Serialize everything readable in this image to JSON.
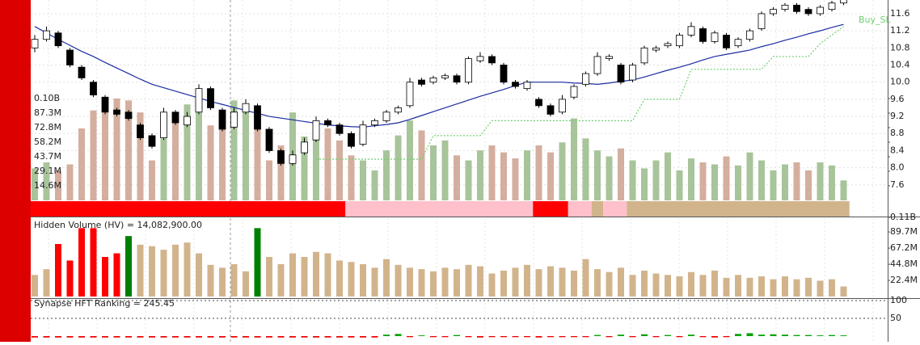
{
  "chart_data": [
    {
      "type": "candlestick",
      "open": [
        10.8,
        11.0,
        11.15,
        10.75,
        10.35,
        10.0,
        9.65,
        9.35,
        9.3,
        9.0,
        8.75,
        8.7,
        9.3,
        9.0,
        9.3,
        9.85,
        9.35,
        8.95,
        9.3,
        9.45,
        8.9,
        8.4,
        8.1,
        8.35,
        8.65,
        9.1,
        9.0,
        8.8,
        8.55,
        9.0,
        9.1,
        9.3,
        9.45,
        10.05,
        10.0,
        10.1,
        10.15,
        10.0,
        10.5,
        10.6,
        10.4,
        10.0,
        9.85,
        9.6,
        9.45,
        9.3,
        9.65,
        9.95,
        10.2,
        10.55,
        10.4,
        10.05,
        10.45,
        10.75,
        10.85,
        10.85,
        11.1,
        11.25,
        10.95,
        11.1,
        10.85,
        11.0,
        11.25,
        11.6,
        11.7,
        11.8,
        11.7,
        11.6,
        11.7,
        11.85
      ],
      "high": [
        11.1,
        11.3,
        11.2,
        10.8,
        10.4,
        10.05,
        9.7,
        9.4,
        9.35,
        9.05,
        8.8,
        9.4,
        9.35,
        9.3,
        9.95,
        9.9,
        9.4,
        9.4,
        9.6,
        9.5,
        8.95,
        8.45,
        8.4,
        8.7,
        9.2,
        9.15,
        9.05,
        8.85,
        9.1,
        9.15,
        9.35,
        9.45,
        10.1,
        10.1,
        10.15,
        10.2,
        10.2,
        10.6,
        10.7,
        10.65,
        10.45,
        10.05,
        10.05,
        9.65,
        9.5,
        9.7,
        9.95,
        10.25,
        10.7,
        10.65,
        10.45,
        10.45,
        10.85,
        10.85,
        10.95,
        11.15,
        11.4,
        11.3,
        11.2,
        11.15,
        11.05,
        11.25,
        11.65,
        11.75,
        11.85,
        11.85,
        11.75,
        11.8,
        11.9,
        12.0
      ],
      "low": [
        10.7,
        10.95,
        10.8,
        10.35,
        10.05,
        9.65,
        9.25,
        9.2,
        9.1,
        8.65,
        8.45,
        8.65,
        9.0,
        8.95,
        9.25,
        9.35,
        8.85,
        8.9,
        9.25,
        8.85,
        8.35,
        8.05,
        8.05,
        8.3,
        8.6,
        8.95,
        8.75,
        8.45,
        8.5,
        8.95,
        9.05,
        9.25,
        9.4,
        9.9,
        9.95,
        10.05,
        9.95,
        9.95,
        10.45,
        10.4,
        9.95,
        9.85,
        9.8,
        9.4,
        9.2,
        9.25,
        9.6,
        9.9,
        10.15,
        10.5,
        9.95,
        10.0,
        10.4,
        10.7,
        10.8,
        10.8,
        11.05,
        10.9,
        10.9,
        10.75,
        10.8,
        10.95,
        11.2,
        11.55,
        11.65,
        11.6,
        11.55,
        11.55,
        11.65,
        11.8
      ],
      "close": [
        11.0,
        11.2,
        10.85,
        10.4,
        10.1,
        9.7,
        9.3,
        9.25,
        9.15,
        8.7,
        8.5,
        9.3,
        9.05,
        9.2,
        9.85,
        9.4,
        8.9,
        9.3,
        9.5,
        8.9,
        8.4,
        8.1,
        8.3,
        8.6,
        9.1,
        9.0,
        8.8,
        8.5,
        9.0,
        9.1,
        9.3,
        9.4,
        10.0,
        9.95,
        10.1,
        10.15,
        10.0,
        10.55,
        10.6,
        10.45,
        10.0,
        9.9,
        10.0,
        9.45,
        9.25,
        9.6,
        9.9,
        10.2,
        10.6,
        10.6,
        10.0,
        10.4,
        10.8,
        10.8,
        10.9,
        11.1,
        11.3,
        10.95,
        11.15,
        10.8,
        11.0,
        11.2,
        11.6,
        11.7,
        11.8,
        11.65,
        11.6,
        11.75,
        11.85,
        11.95
      ],
      "up_color": "#ffffff",
      "down_color": "#000000",
      "series": [
        {
          "color": "#1a2ca0",
          "values": [
            11.3,
            11.15,
            11.0,
            10.86,
            10.72,
            10.6,
            10.46,
            10.33,
            10.2,
            10.07,
            9.95,
            9.87,
            9.79,
            9.71,
            9.63,
            9.55,
            9.48,
            9.41,
            9.34,
            9.27,
            9.2,
            9.16,
            9.12,
            9.08,
            9.04,
            9.0,
            8.98,
            8.96,
            8.95,
            8.98,
            9.01,
            9.05,
            9.13,
            9.22,
            9.31,
            9.4,
            9.49,
            9.58,
            9.67,
            9.75,
            9.83,
            9.92,
            10.0,
            10.0,
            10.0,
            10.0,
            9.98,
            9.97,
            9.95,
            9.98,
            10.02,
            10.05,
            10.12,
            10.2,
            10.28,
            10.35,
            10.43,
            10.52,
            10.6,
            10.65,
            10.7,
            10.75,
            10.83,
            10.9,
            10.98,
            11.05,
            11.13,
            11.2,
            11.28,
            11.35
          ]
        },
        {
          "name": "Buy_SL",
          "color": "#6fcf6f",
          "dash": true,
          "values": [
            null,
            null,
            null,
            null,
            null,
            null,
            null,
            null,
            null,
            null,
            null,
            null,
            null,
            null,
            null,
            null,
            null,
            null,
            null,
            null,
            null,
            null,
            null,
            null,
            8.2,
            8.2,
            8.2,
            8.2,
            8.2,
            8.2,
            8.2,
            8.2,
            8.2,
            8.2,
            8.75,
            8.75,
            8.75,
            8.75,
            8.75,
            9.1,
            9.1,
            9.1,
            9.1,
            9.1,
            9.1,
            9.1,
            9.1,
            9.1,
            9.1,
            9.1,
            9.1,
            9.1,
            9.6,
            9.6,
            9.6,
            9.6,
            10.3,
            10.3,
            10.3,
            10.3,
            10.3,
            10.3,
            10.3,
            10.6,
            10.6,
            10.6,
            10.6,
            10.9,
            11.1,
            11.3
          ]
        }
      ],
      "regime_runs": [
        {
          "count": 27,
          "color": "#ff0000"
        },
        {
          "count": 16,
          "color": "#ffc0cb"
        },
        {
          "count": 3,
          "color": "#ff0000"
        },
        {
          "count": 2,
          "color": "#ffc0cb"
        },
        {
          "count": 1,
          "color": "#d2b48c"
        },
        {
          "count": 2,
          "color": "#ffc0cb"
        },
        {
          "count": 19,
          "color": "#d2b48c"
        }
      ],
      "ylim": [
        6.86,
        11.92
      ],
      "yticks": [
        7.6,
        {
          "value": 8,
          "label": "8.0"
        },
        8.4,
        8.8,
        9.2,
        9.6,
        {
          "value": 10,
          "label": "10.0"
        },
        10.4,
        10.8,
        11.2,
        11.6
      ],
      "grid": true
    },
    {
      "type": "bar",
      "values": [
        32,
        38,
        30,
        36,
        72,
        90,
        95,
        102,
        100,
        88,
        40,
        62,
        78,
        96,
        88,
        75,
        80,
        100,
        90,
        72,
        40,
        55,
        88,
        64,
        72,
        72,
        60,
        45,
        40,
        30,
        50,
        65,
        80,
        70,
        55,
        60,
        45,
        40,
        50,
        55,
        48,
        42,
        50,
        55,
        48,
        58,
        82,
        62,
        50,
        44,
        52,
        40,
        32,
        40,
        48,
        30,
        42,
        38,
        36,
        44,
        35,
        48,
        40,
        30,
        36,
        38,
        30,
        38,
        35,
        20
      ],
      "up_color": "#a8c49a",
      "down_color": "#d4ae9e",
      "ylim": [
        0,
        200.5
      ],
      "yticks": [
        {
          "value": 14.6,
          "label": "14.6M"
        },
        {
          "value": 29.1,
          "label": "29.1M"
        },
        {
          "value": 43.7,
          "label": "43.7M"
        },
        {
          "value": 58.2,
          "label": "58.2M"
        },
        {
          "value": 72.8,
          "label": "72.8M"
        },
        {
          "value": 87.3,
          "label": "87.3M"
        },
        {
          "value": 101.9,
          "label": "0.10B"
        }
      ]
    },
    {
      "type": "bar",
      "title": "Hidden Volume (HV) = 14,082,900.00",
      "values": [
        30,
        38,
        73,
        50,
        95,
        95,
        55,
        60,
        84,
        72,
        70,
        65,
        72,
        75,
        60,
        44,
        40,
        45,
        35,
        95,
        55,
        45,
        60,
        55,
        62,
        60,
        50,
        48,
        45,
        40,
        52,
        44,
        40,
        38,
        35,
        40,
        38,
        44,
        42,
        32,
        36,
        40,
        44,
        38,
        42,
        40,
        36,
        52,
        38,
        34,
        40,
        30,
        36,
        32,
        30,
        28,
        34,
        30,
        36,
        26,
        30,
        26,
        28,
        24,
        28,
        24,
        26,
        22,
        24,
        14
      ],
      "colors": [
        "#d2b48c",
        "#d2b48c",
        "#ff0000",
        "#ff0000",
        "#ff0000",
        "#ff0000",
        "#ff0000",
        "#ff0000",
        "#008000",
        "#d2b48c",
        "#d2b48c",
        "#d2b48c",
        "#d2b48c",
        "#d2b48c",
        "#d2b48c",
        "#d2b48c",
        "#d2b48c",
        "#d2b48c",
        "#d2b48c",
        "#008000",
        "#d2b48c",
        "#d2b48c",
        "#d2b48c",
        "#d2b48c",
        "#d2b48c",
        "#d2b48c",
        "#d2b48c",
        "#d2b48c",
        "#d2b48c",
        "#d2b48c",
        "#d2b48c",
        "#d2b48c",
        "#d2b48c",
        "#d2b48c",
        "#d2b48c",
        "#d2b48c",
        "#d2b48c",
        "#d2b48c",
        "#d2b48c",
        "#d2b48c",
        "#d2b48c",
        "#d2b48c",
        "#d2b48c",
        "#d2b48c",
        "#d2b48c",
        "#d2b48c",
        "#d2b48c",
        "#d2b48c",
        "#d2b48c",
        "#d2b48c",
        "#d2b48c",
        "#d2b48c",
        "#d2b48c",
        "#d2b48c",
        "#d2b48c",
        "#d2b48c",
        "#d2b48c",
        "#d2b48c",
        "#d2b48c",
        "#d2b48c",
        "#d2b48c",
        "#d2b48c",
        "#d2b48c",
        "#d2b48c",
        "#d2b48c",
        "#d2b48c",
        "#d2b48c",
        "#d2b48c",
        "#d2b48c",
        "#d2b48c"
      ],
      "ylim": [
        0,
        110
      ],
      "yticks": [
        {
          "value": 22.4,
          "label": "22.4M"
        },
        {
          "value": 44.8,
          "label": "44.8M"
        },
        {
          "value": 67.2,
          "label": "67.2M"
        },
        {
          "value": 89.7,
          "label": "89.7M"
        },
        {
          "value": 110,
          "label": "0.11B"
        }
      ]
    },
    {
      "type": "bar",
      "title": "Synapse HFT Ranking = 245.45",
      "values": [
        -4,
        -4,
        -4,
        -4,
        -4,
        -4,
        -4,
        -4,
        -4,
        -4,
        -4,
        -4,
        -4,
        -4,
        -4,
        -4,
        -4,
        -4,
        -4,
        -4,
        -4,
        -4,
        -4,
        -4,
        -4,
        -4,
        -4,
        -4,
        -4,
        -4,
        4,
        6,
        -3,
        2,
        -3,
        -3,
        3,
        -3,
        -4,
        -3,
        -3,
        -3,
        -3,
        -4,
        -3,
        -3,
        -3,
        -3,
        3,
        -3,
        4,
        -3,
        5,
        -3,
        3,
        -3,
        4,
        -3,
        -4,
        -3,
        6,
        8,
        4,
        5,
        4,
        3,
        3,
        2,
        3,
        2
      ],
      "up_color": "#00a000",
      "down_color": "#ee0000",
      "ylim": [
        -16,
        104.5
      ],
      "yticks": [
        100,
        50
      ]
    }
  ]
}
